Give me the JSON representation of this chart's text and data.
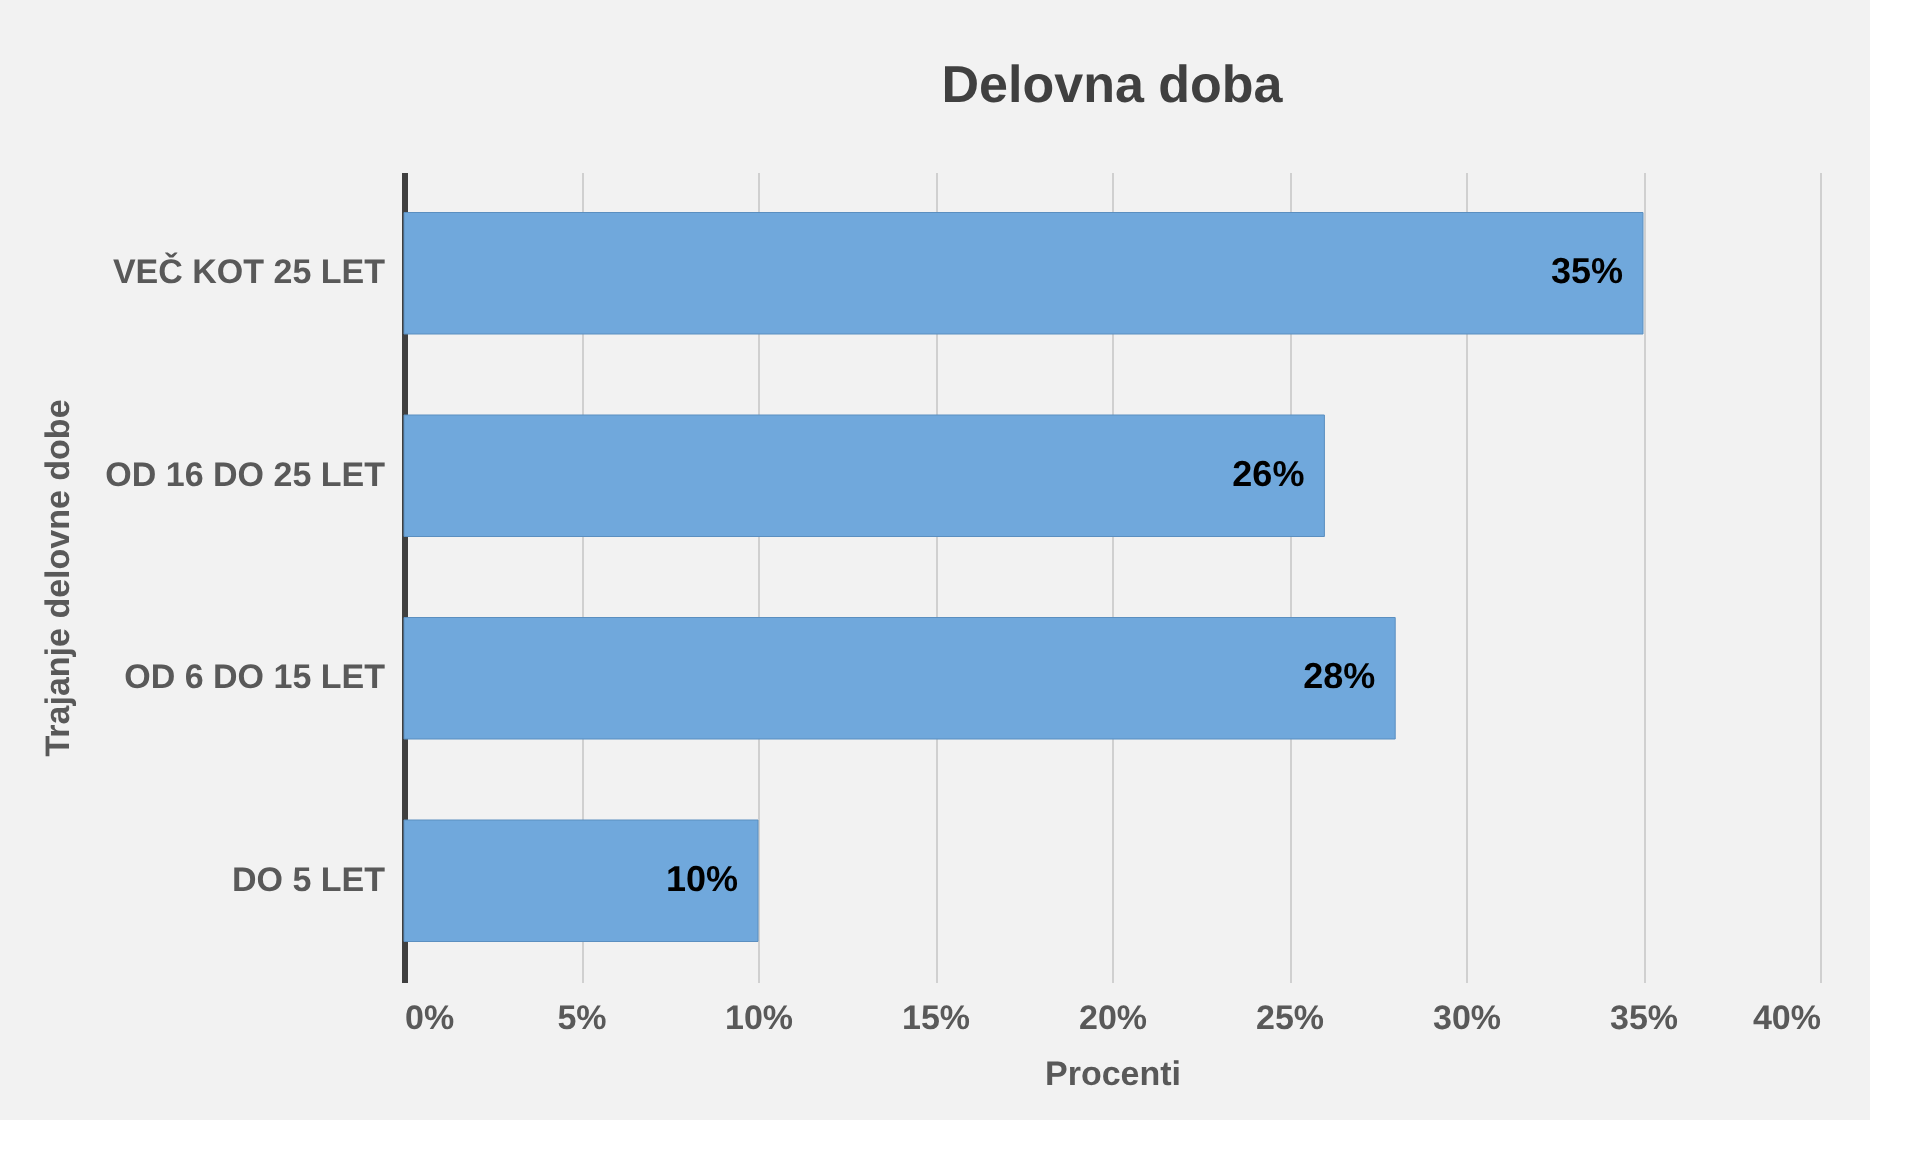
{
  "chart_data": {
    "type": "bar",
    "orientation": "horizontal",
    "title": "Delovna doba",
    "xlabel": "Procenti",
    "ylabel": "Trajanje delovne dobe",
    "categories": [
      "VEČ KOT 25 LET",
      "OD 16 DO 25 LET",
      "OD 6 DO 15 LET",
      "DO 5 LET"
    ],
    "values": [
      35,
      26,
      28,
      10
    ],
    "value_labels": [
      "35%",
      "26%",
      "28%",
      "10%"
    ],
    "color": "#70a8dc",
    "xlim": [
      0,
      40
    ],
    "xticks": [
      {
        "value": 0,
        "label": "0%"
      },
      {
        "value": 5,
        "label": "5%"
      },
      {
        "value": 10,
        "label": "10%"
      },
      {
        "value": 15,
        "label": "15%"
      },
      {
        "value": 20,
        "label": "20%"
      },
      {
        "value": 25,
        "label": "25%"
      },
      {
        "value": 30,
        "label": "30%"
      },
      {
        "value": 35,
        "label": "35%"
      },
      {
        "value": 40,
        "label": "40%"
      }
    ],
    "grid": "x"
  }
}
